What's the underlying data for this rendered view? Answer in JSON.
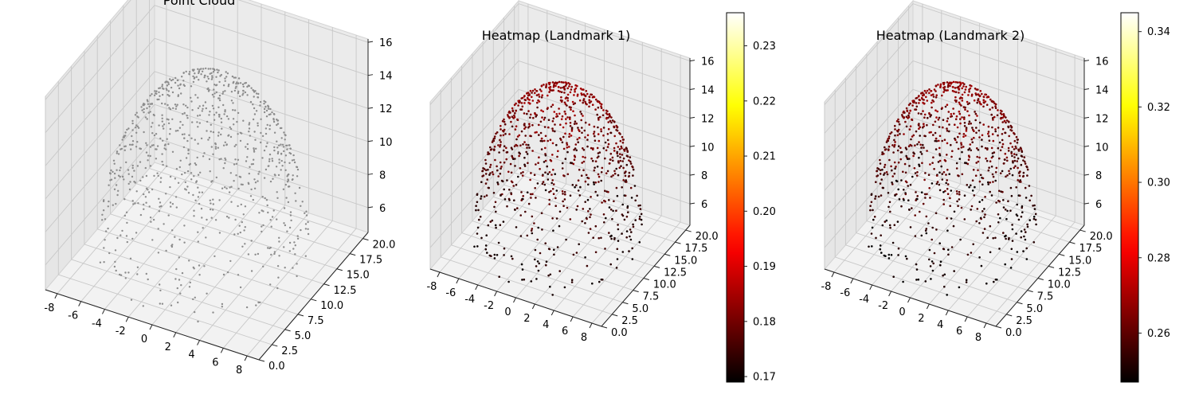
{
  "chart_data": [
    {
      "type": "scatter",
      "subtype": "scatter3d",
      "title": "Point Cloud",
      "xlabel": "",
      "ylabel": "",
      "zlabel": "",
      "xlim": [
        -9,
        9
      ],
      "ylim": [
        0,
        21
      ],
      "zlim": [
        4.5,
        16.2
      ],
      "x_ticks": [
        "-8",
        "-6",
        "-4",
        "-2",
        "0",
        "2",
        "4",
        "6",
        "8"
      ],
      "y_ticks": [
        "0.0",
        "2.5",
        "5.0",
        "7.5",
        "10.0",
        "12.5",
        "15.0",
        "17.5",
        "20.0"
      ],
      "z_ticks": [
        "6",
        "8",
        "10",
        "12",
        "14",
        "16"
      ],
      "grid": true,
      "point_color": "#8c8c8c",
      "point_count_approx": 1000,
      "shape": "scanned head/bust surface: base footprint x from -8 to 8, y from 0 to 20, cap peaking near z 15.5 at x~0, y~10"
    },
    {
      "type": "scatter",
      "subtype": "scatter3d",
      "title": "Heatmap (Landmark 1)",
      "xlabel": "",
      "ylabel": "",
      "zlabel": "",
      "xlim": [
        -9,
        9
      ],
      "ylim": [
        0,
        21
      ],
      "zlim": [
        4.5,
        16.2
      ],
      "x_ticks": [
        "-8",
        "-6",
        "-4",
        "-2",
        "0",
        "2",
        "4",
        "6",
        "8"
      ],
      "y_ticks": [
        "0.0",
        "2.5",
        "5.0",
        "7.5",
        "10.0",
        "12.5",
        "15.0",
        "17.5",
        "20.0"
      ],
      "z_ticks": [
        "6",
        "8",
        "10",
        "12",
        "14",
        "16"
      ],
      "grid": true,
      "colormap": "hot",
      "colorbar_range": [
        0.169,
        0.236
      ],
      "colorbar_ticks": [
        "0.17",
        "0.18",
        "0.19",
        "0.20",
        "0.21",
        "0.22",
        "0.23"
      ],
      "value_range_points": [
        0.17,
        0.185
      ]
    },
    {
      "type": "scatter",
      "subtype": "scatter3d",
      "title": "Heatmap (Landmark 2)",
      "xlabel": "",
      "ylabel": "",
      "zlabel": "",
      "xlim": [
        -9,
        9
      ],
      "ylim": [
        0,
        21
      ],
      "zlim": [
        4.5,
        16.2
      ],
      "x_ticks": [
        "-8",
        "-6",
        "-4",
        "-2",
        "0",
        "2",
        "4",
        "6",
        "8"
      ],
      "y_ticks": [
        "0.0",
        "2.5",
        "5.0",
        "7.5",
        "10.0",
        "12.5",
        "15.0",
        "17.5",
        "20.0"
      ],
      "z_ticks": [
        "6",
        "8",
        "10",
        "12",
        "14",
        "16"
      ],
      "grid": true,
      "colormap": "hot",
      "colorbar_range": [
        0.247,
        0.345
      ],
      "colorbar_ticks": [
        "0.26",
        "0.28",
        "0.30",
        "0.32",
        "0.34"
      ],
      "value_range_points": [
        0.247,
        0.27
      ]
    }
  ]
}
